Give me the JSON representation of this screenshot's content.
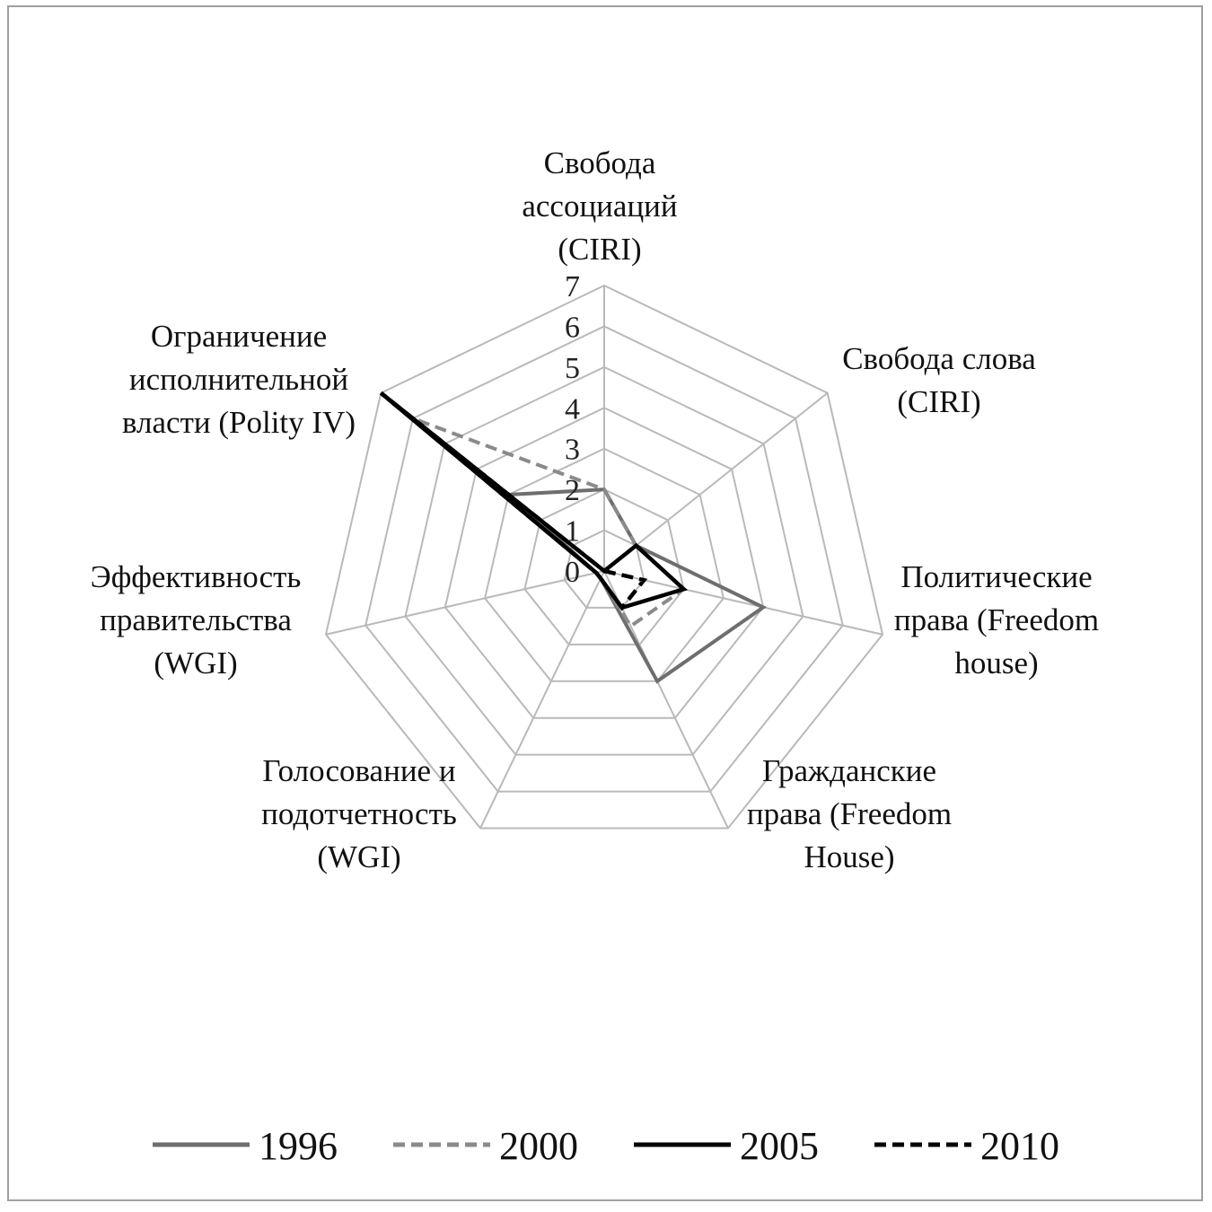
{
  "chart_data": {
    "type": "radar",
    "title": "",
    "axes": [
      "Свобода ассоциаций (CIRI)",
      "Свобода слова (CIRI)",
      "Политические права (Freedom house)",
      "Гражданские права (Freedom House)",
      "Голосование и подотчетность (WGI)",
      "Эффективность правительства (WGI)",
      "Ограничение исполнительной власти (Polity IV)"
    ],
    "axis_label_lines": [
      [
        "Свобода",
        "ассоциаций",
        "(CIRI)"
      ],
      [
        "Свобода слова",
        "(CIRI)"
      ],
      [
        "Политические",
        "права (Freedom",
        "house)"
      ],
      [
        "Гражданские",
        "права (Freedom",
        "House)"
      ],
      [
        "Голосование и",
        "подотчетность",
        "(WGI)"
      ],
      [
        "Эффективность",
        "правительства",
        "(WGI)"
      ],
      [
        "Ограничение",
        "исполнительной",
        "власти (Polity IV)"
      ]
    ],
    "r_ticks": [
      0,
      1,
      2,
      3,
      4,
      5,
      6,
      7
    ],
    "rlim": [
      0,
      7
    ],
    "grid": true,
    "legend_position": "bottom",
    "series": [
      {
        "name": "1996",
        "values": [
          2,
          1,
          4,
          3,
          0.2,
          0.2,
          3
        ],
        "color": "#6e6e6e",
        "dash": "solid"
      },
      {
        "name": "2000",
        "values": [
          2,
          1,
          2,
          1.5,
          0.2,
          0.2,
          6
        ],
        "color": "#8a8a8a",
        "dash": "dashed"
      },
      {
        "name": "2005",
        "values": [
          0,
          1,
          2,
          1,
          0.2,
          0.2,
          7
        ],
        "color": "#000000",
        "dash": "solid"
      },
      {
        "name": "2010",
        "values": [
          0,
          0,
          1,
          1,
          0.2,
          0.2,
          7
        ],
        "color": "#000000",
        "dash": "dashed"
      }
    ]
  }
}
